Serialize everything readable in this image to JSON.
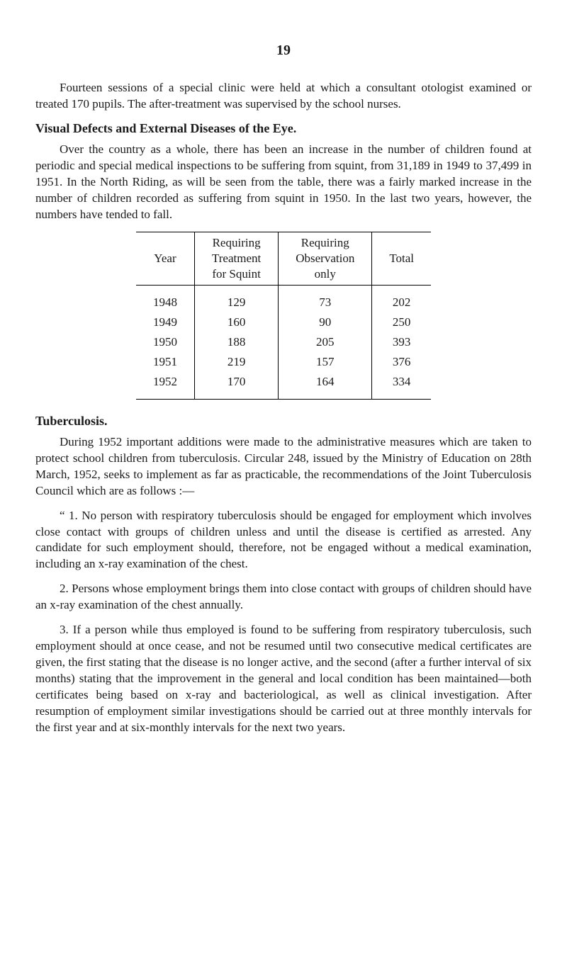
{
  "page_number": "19",
  "para1": "Fourteen sessions of a special clinic were held at which a consultant otologist examined or treated 170 pupils. The after-treatment was supervised by the school nurses.",
  "heading_visual": "Visual Defects and External Diseases of the Eye.",
  "para2": "Over the country as a whole, there has been an increase in the number of children found at periodic and special medical inspections to be suffering from squint, from 31,189 in 1949 to 37,499 in 1951. In the North Riding, as will be seen from the table, there was a fairly marked increase in the number of children recorded as suffering from squint in 1950. In the last two years, however, the numbers have tended to fall.",
  "table": {
    "headers": {
      "year": "Year",
      "treatment_l1": "Requiring",
      "treatment_l2": "Treatment",
      "treatment_l3": "for Squint",
      "observation_l1": "Requiring",
      "observation_l2": "Observation",
      "observation_l3": "only",
      "total": "Total"
    },
    "rows": [
      {
        "year": "1948",
        "treatment": "129",
        "observation": "73",
        "total": "202"
      },
      {
        "year": "1949",
        "treatment": "160",
        "observation": "90",
        "total": "250"
      },
      {
        "year": "1950",
        "treatment": "188",
        "observation": "205",
        "total": "393"
      },
      {
        "year": "1951",
        "treatment": "219",
        "observation": "157",
        "total": "376"
      },
      {
        "year": "1952",
        "treatment": "170",
        "observation": "164",
        "total": "334"
      }
    ]
  },
  "heading_tb": "Tuberculosis.",
  "para3": "During 1952 important additions were made to the administrative measures which are taken to protect school children from tuberculosis. Circular 248, issued by the Ministry of Education on 28th March, 1952, seeks to implement as far as practicable, the recommendations of the Joint Tuberculosis Council which are as follows :—",
  "para4": "“ 1. No person with respiratory tuberculosis should be engaged for employment which involves close contact with groups of children unless and until the disease is certified as arrested. Any candidate for such employment should, therefore, not be engaged without a medical examination, including an x-ray examination of the chest.",
  "para5": "2. Persons whose employment brings them into close contact with groups of children should have an x-ray examination of the chest annually.",
  "para6": "3. If a person while thus employed is found to be suffering from respiratory tuberculosis, such employment should at once cease, and not be resumed until two consecutive medical certificates are given, the first stating that the disease is no longer active, and the second (after a further interval of six months) stating that the improvement in the general and local condition has been maintained—both certificates being based on x-ray and bacteriological, as well as clinical investigation. After resumption of employment similar investigations should be carried out at three monthly intervals for the first year and at six-monthly intervals for the next two years."
}
